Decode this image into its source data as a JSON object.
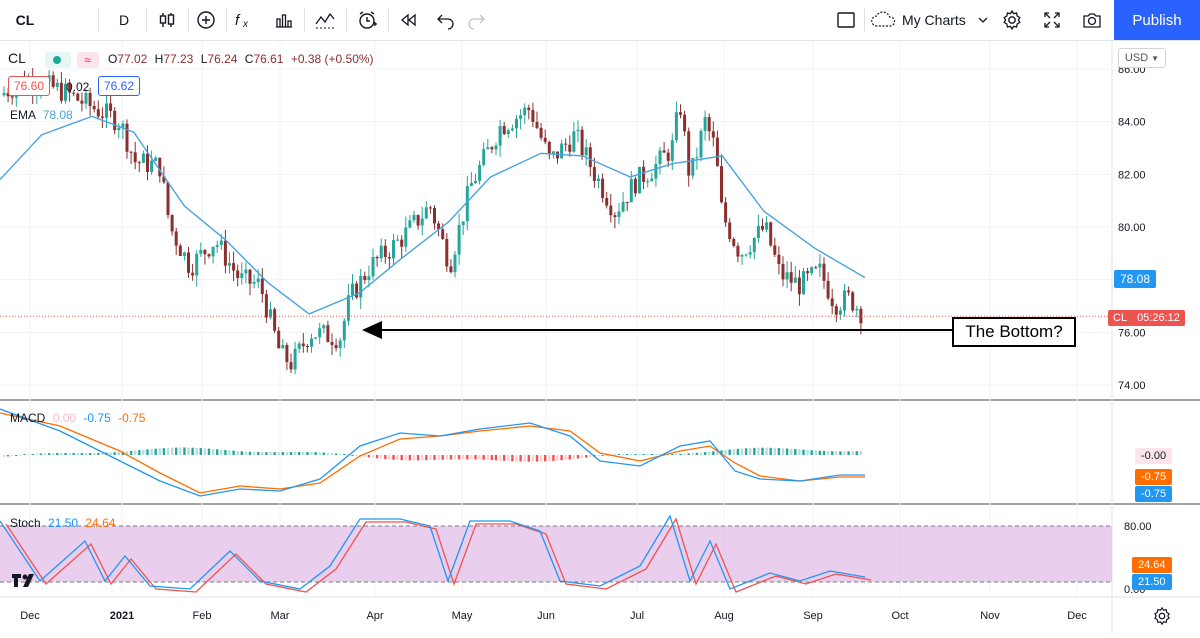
{
  "toolbar": {
    "symbol": "CL",
    "interval": "D",
    "my_charts_label": "My Charts",
    "publish_label": "Publish"
  },
  "legend": {
    "symbol": "CL",
    "open_label": "O",
    "open": "77.02",
    "high_label": "H",
    "high": "77.23",
    "low_label": "L",
    "low": "76.24",
    "close_label": "C",
    "close": "76.61",
    "change": "+0.38 (+0.50%)",
    "bid": "76.60",
    "spread": "0.02",
    "ask": "76.62",
    "ema_label": "EMA",
    "ema_value": "78.08"
  },
  "price_axis": {
    "currency": "USD",
    "ticks": [
      "86.00",
      "84.00",
      "82.00",
      "80.00",
      "78.00",
      "76.00",
      "74.00"
    ],
    "ema_badge": "78.08",
    "cl_badge_label": "CL",
    "cl_badge_time": "05:26:12"
  },
  "annotation": {
    "text": "The Bottom?"
  },
  "macd": {
    "label": "MACD",
    "hist": "0.00",
    "macd": "-0.75",
    "signal": "-0.75",
    "badges": [
      "-0.00",
      "-0.75",
      "-0.75"
    ]
  },
  "stoch": {
    "label": "Stoch",
    "k": "21.50",
    "d": "24.64",
    "ticks": [
      "80.00",
      "0.00"
    ],
    "badges": [
      "24.64",
      "21.50"
    ]
  },
  "time_axis": {
    "labels": [
      "Dec",
      "2021",
      "Feb",
      "Mar",
      "Apr",
      "May",
      "Jun",
      "Jul",
      "Aug",
      "Sep",
      "Oct",
      "Nov",
      "Dec"
    ]
  },
  "colors": {
    "up": "#26a69a",
    "down": "#8b2f2f",
    "ema": "#4aa3df",
    "macd_line": "#2196f3",
    "signal_line": "#ff6d00",
    "stoch_k": "#2196f3",
    "stoch_d": "#ef5350",
    "stoch_band": "#e1bee7",
    "accent": "#2962ff"
  },
  "chart_data": {
    "type": "candlestick",
    "title": "CL",
    "interval": "D",
    "x_range": [
      "Dec 2020",
      "Dec 2021"
    ],
    "price_range": [
      73.5,
      86.5
    ],
    "ema_approx": [
      {
        "date": "2020-12-01",
        "value": 81.8
      },
      {
        "date": "2020-12-15",
        "value": 83.5
      },
      {
        "date": "2021-01-01",
        "value": 84.2
      },
      {
        "date": "2021-01-15",
        "value": 83.6
      },
      {
        "date": "2021-02-01",
        "value": 80.8
      },
      {
        "date": "2021-02-15",
        "value": 79.5
      },
      {
        "date": "2021-03-01",
        "value": 77.9
      },
      {
        "date": "2021-03-15",
        "value": 76.7
      },
      {
        "date": "2021-04-01",
        "value": 77.5
      },
      {
        "date": "2021-04-15",
        "value": 78.8
      },
      {
        "date": "2021-05-01",
        "value": 80.2
      },
      {
        "date": "2021-05-15",
        "value": 81.9
      },
      {
        "date": "2021-06-01",
        "value": 82.8
      },
      {
        "date": "2021-06-15",
        "value": 82.7
      },
      {
        "date": "2021-07-01",
        "value": 81.9
      },
      {
        "date": "2021-07-15",
        "value": 82.4
      },
      {
        "date": "2021-08-01",
        "value": 82.7
      },
      {
        "date": "2021-08-15",
        "value": 80.6
      },
      {
        "date": "2021-09-01",
        "value": 79.2
      },
      {
        "date": "2021-09-18",
        "value": 78.08
      }
    ],
    "last": {
      "open": 77.02,
      "high": 77.23,
      "low": 76.24,
      "close": 76.61
    }
  }
}
